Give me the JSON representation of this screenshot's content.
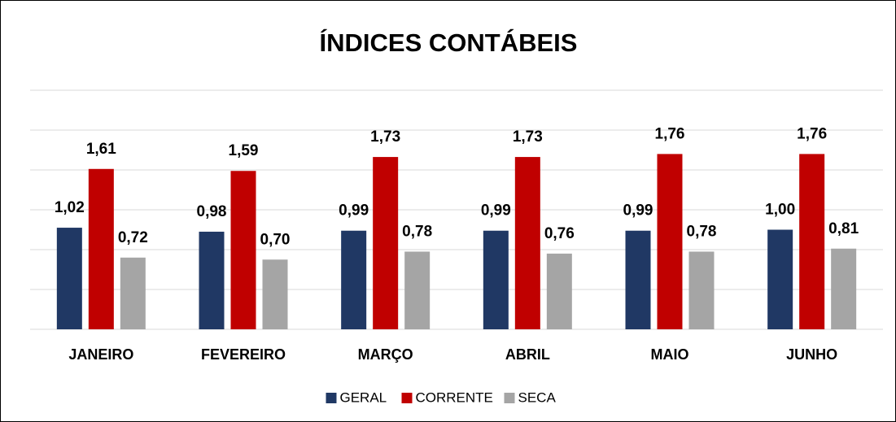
{
  "chart_data": {
    "type": "bar",
    "title": "ÍNDICES CONTÁBEIS",
    "categories": [
      "JANEIRO",
      "FEVEREIRO",
      "MARÇO",
      "ABRIL",
      "MAIO",
      "JUNHO"
    ],
    "series": [
      {
        "name": "GERAL",
        "color": "#203864",
        "values": [
          1.02,
          0.98,
          0.99,
          0.99,
          0.99,
          1.0
        ],
        "value_labels": [
          "1,02",
          "0,98",
          "0,99",
          "0,99",
          "0,99",
          "1,00"
        ]
      },
      {
        "name": "CORRENTE",
        "color": "#c00000",
        "values": [
          1.61,
          1.59,
          1.73,
          1.73,
          1.76,
          1.76
        ],
        "value_labels": [
          "1,61",
          "1,59",
          "1,73",
          "1,73",
          "1,76",
          "1,76"
        ]
      },
      {
        "name": "SECA",
        "color": "#a5a5a5",
        "values": [
          0.72,
          0.7,
          0.78,
          0.76,
          0.78,
          0.81
        ],
        "value_labels": [
          "0,72",
          "0,70",
          "0,78",
          "0,76",
          "0,78",
          "0,81"
        ]
      }
    ],
    "ylim": [
      0,
      2.4
    ],
    "yticks": [
      0,
      0.4,
      0.8,
      1.2,
      1.6,
      2.0,
      2.4
    ],
    "grid": true,
    "legend": "bottom"
  }
}
